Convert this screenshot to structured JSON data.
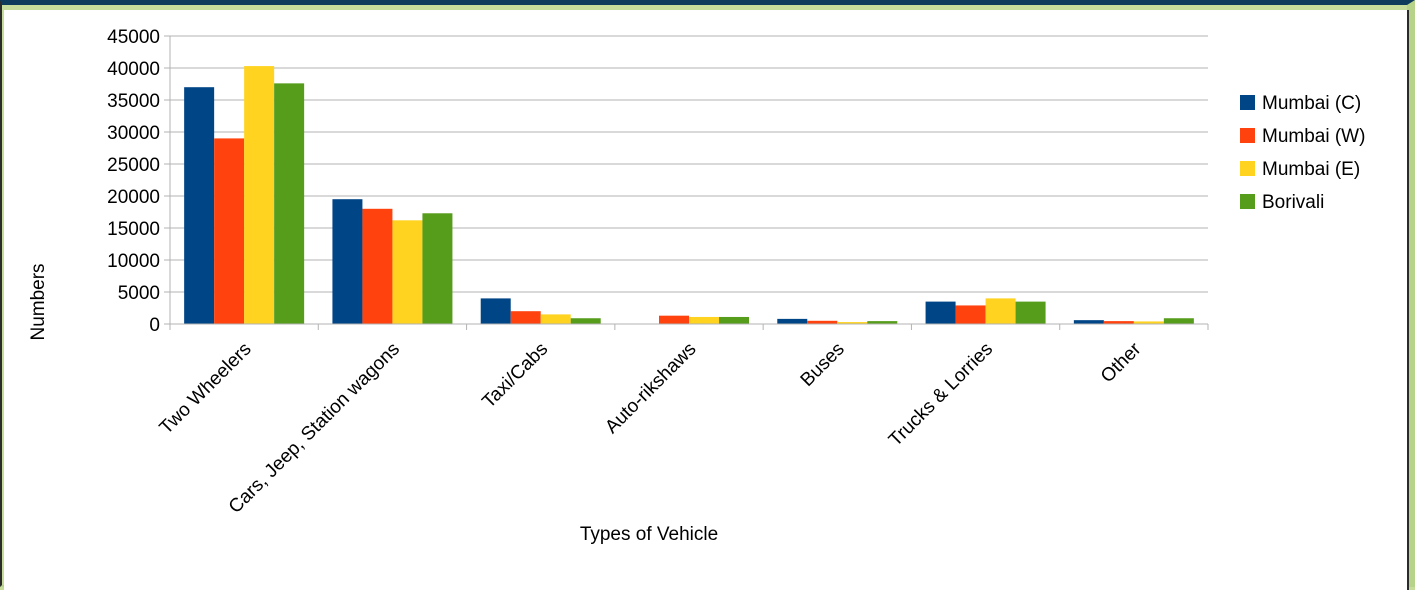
{
  "chart_data": {
    "type": "bar",
    "categories": [
      "Two Wheelers",
      "Cars, Jeep, Station wagons",
      "Taxi/Cabs",
      "Auto-rikshaws",
      "Buses",
      "Trucks & Lorries",
      "Other"
    ],
    "series": [
      {
        "name": "Mumbai (C)",
        "color": "#004586",
        "values": [
          37000,
          19500,
          4000,
          0,
          800,
          3500,
          600
        ]
      },
      {
        "name": "Mumbai (W)",
        "color": "#ff420e",
        "values": [
          29000,
          18000,
          2000,
          1300,
          500,
          2900,
          450
        ]
      },
      {
        "name": "Mumbai (E)",
        "color": "#ffd320",
        "values": [
          40300,
          16200,
          1500,
          1100,
          300,
          4000,
          400
        ]
      },
      {
        "name": "Borivali",
        "color": "#579d1c",
        "values": [
          37600,
          17300,
          900,
          1100,
          450,
          3500,
          900
        ]
      }
    ],
    "title": "",
    "xlabel": "Types of Vehicle",
    "ylabel": "Numbers",
    "ylim": [
      0,
      45000
    ],
    "yticks": [
      "0",
      "5000",
      "10000",
      "15000",
      "20000",
      "25000",
      "30000",
      "35000",
      "40000",
      "45000"
    ],
    "grid": true,
    "legend_position": "right"
  }
}
